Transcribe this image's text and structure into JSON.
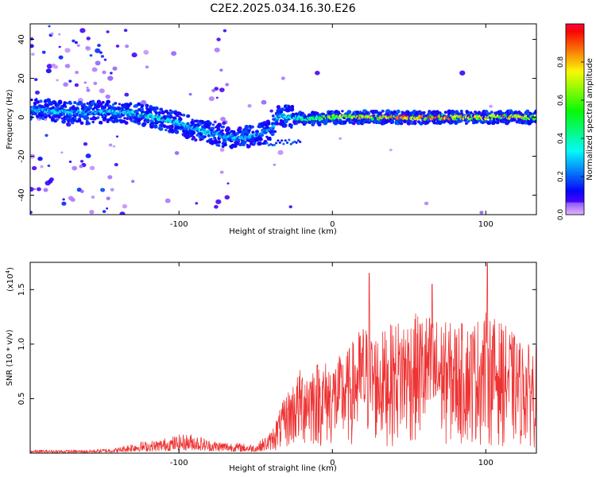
{
  "title": "C2E2.2025.034.16.30.E26",
  "chart_data": [
    {
      "type": "heatmap",
      "xlabel": "Height of straight line (km)",
      "ylabel": "Frequency (Hz)",
      "xlim": [
        -197,
        133
      ],
      "ylim": [
        -50,
        48
      ],
      "xticks": [
        -100,
        0,
        100
      ],
      "yticks": [
        -40,
        -20,
        0,
        20,
        40
      ],
      "colorbar": {
        "label": "Normalized spectral amplitude",
        "range": [
          0,
          1
        ],
        "ticks": [
          "0.0",
          "0.2",
          "0.4",
          "0.6",
          "0.8"
        ],
        "colormap": "rainbow (purple-blue-cyan-green-yellow-red-magenta)"
      },
      "ridge_x": [
        -195,
        -180,
        -160,
        -145,
        -130,
        -115,
        -100,
        -90,
        -80,
        -70,
        -60,
        -50,
        -40,
        -35,
        -25,
        -15,
        0,
        20,
        40,
        60,
        80,
        100,
        120,
        133
      ],
      "ridge_freq": [
        4,
        3,
        2,
        3,
        2,
        0,
        -3,
        -6,
        -8,
        -10,
        -11,
        -9,
        -7,
        1,
        0,
        -1,
        0,
        0,
        0,
        0,
        0,
        0,
        0,
        0
      ],
      "ridge_amplitude": [
        0.3,
        0.35,
        0.3,
        0.35,
        0.4,
        0.4,
        0.35,
        0.35,
        0.35,
        0.3,
        0.35,
        0.3,
        0.3,
        0.35,
        0.4,
        0.55,
        0.7,
        0.85,
        0.95,
        0.95,
        0.85,
        0.85,
        0.85,
        0.7
      ]
    },
    {
      "type": "line",
      "xlabel": "Height of straight line (km)",
      "ylabel": "SNR (10 * v/v)",
      "y_scale_note": "(x10",
      "y_scale_exp": "4",
      "xlim": [
        -197,
        133
      ],
      "ylim": [
        0,
        1.75
      ],
      "xticks": [
        -100,
        0,
        100
      ],
      "yticks": [
        "0.5",
        "1.0",
        "1.5"
      ],
      "color": "#ee3333",
      "envelope_x": [
        -197,
        -160,
        -140,
        -130,
        -115,
        -100,
        -90,
        -80,
        -65,
        -50,
        -40,
        -30,
        -20,
        -10,
        0,
        10,
        20,
        30,
        45,
        60,
        75,
        90,
        100,
        115,
        125,
        133
      ],
      "envelope_y": [
        0.03,
        0.03,
        0.05,
        0.1,
        0.12,
        0.17,
        0.18,
        0.12,
        0.1,
        0.08,
        0.2,
        0.55,
        0.8,
        0.85,
        0.85,
        0.95,
        1.2,
        1.1,
        1.25,
        1.3,
        1.2,
        1.2,
        1.3,
        1.15,
        1.0,
        1.0
      ],
      "peaks": [
        {
          "x": 24,
          "y": 1.65
        },
        {
          "x": 65,
          "y": 1.55
        },
        {
          "x": 101,
          "y": 1.74
        }
      ]
    }
  ]
}
